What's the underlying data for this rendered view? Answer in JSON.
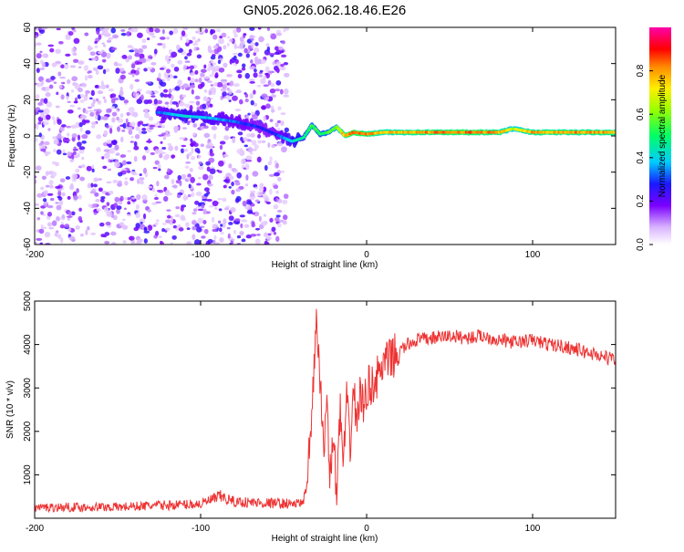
{
  "title": "GN05.2026.062.18.46.E26",
  "chart_data": [
    {
      "type": "heatmap",
      "xlabel": "Height of straight line (km)",
      "ylabel": "Frequency (Hz)",
      "xlim": [
        -200,
        150
      ],
      "ylim": [
        -60,
        60
      ],
      "xticks": [
        -200,
        -100,
        0,
        100
      ],
      "yticks": [
        -60,
        -40,
        -20,
        0,
        20,
        40,
        60
      ],
      "colorbar": {
        "label": "Normalized spectral amplitude",
        "range": [
          0,
          1
        ],
        "ticks": [
          0.0,
          0.2,
          0.4,
          0.6,
          0.8
        ]
      },
      "signal_track": {
        "x": [
          -125,
          -110,
          -95,
          -80,
          -65,
          -55,
          -45,
          -38,
          -33,
          -28,
          -23,
          -18,
          -13,
          -8,
          0,
          10,
          30,
          60,
          80,
          88,
          100,
          150
        ],
        "freq_hz": [
          13,
          11,
          10,
          8,
          5,
          1,
          -3,
          -1,
          6,
          1,
          2,
          5,
          0,
          2,
          1,
          2,
          2,
          2,
          2,
          4,
          2,
          2
        ],
        "amplitude": [
          0.35,
          0.45,
          0.4,
          0.35,
          0.3,
          0.3,
          0.45,
          0.5,
          0.6,
          0.55,
          0.6,
          0.65,
          0.85,
          0.95,
          0.9,
          0.8,
          0.85,
          0.9,
          0.85,
          0.7,
          0.85,
          0.85
        ]
      },
      "noise_region_x": [
        -200,
        -48
      ]
    },
    {
      "type": "line",
      "xlabel": "Height of straight line (km)",
      "ylabel": "SNR (10 * v/v)",
      "xlim": [
        -200,
        150
      ],
      "ylim": [
        0,
        5000
      ],
      "xticks": [
        -200,
        -100,
        0,
        100
      ],
      "yticks": [
        1000,
        2000,
        3000,
        4000,
        5000
      ],
      "series": [
        {
          "name": "SNR",
          "color": "#ee3333",
          "x": [
            -200,
            -150,
            -100,
            -88,
            -80,
            -60,
            -40,
            -36,
            -33,
            -30,
            -28,
            -26,
            -24,
            -22,
            -20,
            -18,
            -16,
            -14,
            -12,
            -10,
            -8,
            -6,
            -4,
            -2,
            0,
            5,
            10,
            15,
            20,
            25,
            30,
            40,
            50,
            60,
            70,
            80,
            90,
            100,
            110,
            120,
            130,
            140,
            150
          ],
          "y": [
            250,
            260,
            330,
            500,
            380,
            350,
            330,
            600,
            2500,
            4500,
            3200,
            1500,
            2800,
            1000,
            1800,
            600,
            2500,
            1200,
            2700,
            1600,
            3000,
            2200,
            2900,
            2500,
            3000,
            3150,
            3500,
            3700,
            3850,
            4000,
            4100,
            4150,
            4200,
            4150,
            4200,
            4100,
            4050,
            4100,
            4000,
            3950,
            3850,
            3750,
            3650
          ]
        }
      ]
    }
  ]
}
